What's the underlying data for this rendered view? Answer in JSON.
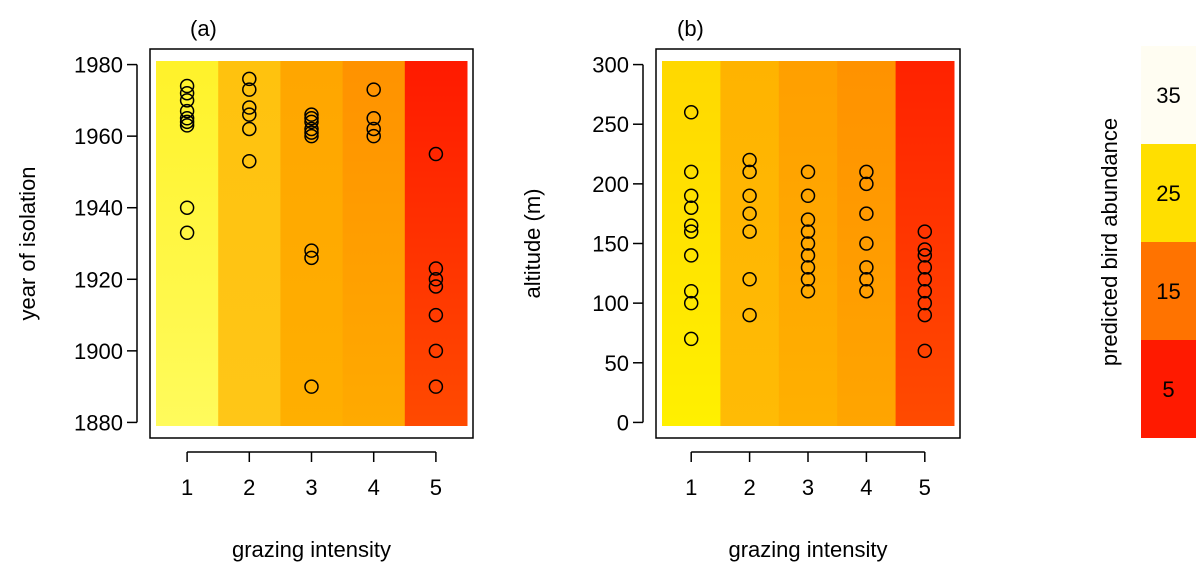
{
  "chart_data": [
    {
      "type": "scatter",
      "panel_label": "(a)",
      "xlabel": "grazing intensity",
      "ylabel": "year of isolation",
      "x_ticks": [
        1,
        2,
        3,
        4,
        5
      ],
      "y_ticks": [
        1880,
        1900,
        1920,
        1940,
        1960,
        1980
      ],
      "xlim": [
        0.5,
        5.5
      ],
      "ylim": [
        1879,
        1981
      ],
      "background": "heatmap of predicted bird abundance by grazing intensity",
      "column_colors": [
        [
          "#FFF22A",
          "#FFFB5C"
        ],
        [
          "#FFC20E",
          "#FFC617"
        ],
        [
          "#FFA600",
          "#FFAF00"
        ],
        [
          "#FF9200",
          "#FFAA00"
        ],
        [
          "#FF1A00",
          "#FF4A00"
        ]
      ],
      "points": [
        [
          1,
          1974
        ],
        [
          1,
          1972
        ],
        [
          1,
          1970
        ],
        [
          1,
          1967
        ],
        [
          1,
          1965
        ],
        [
          1,
          1964
        ],
        [
          1,
          1963
        ],
        [
          1,
          1940
        ],
        [
          1,
          1933
        ],
        [
          2,
          1976
        ],
        [
          2,
          1973
        ],
        [
          2,
          1968
        ],
        [
          2,
          1966
        ],
        [
          2,
          1962
        ],
        [
          2,
          1953
        ],
        [
          3,
          1966
        ],
        [
          3,
          1965
        ],
        [
          3,
          1964
        ],
        [
          3,
          1962
        ],
        [
          3,
          1961
        ],
        [
          3,
          1960
        ],
        [
          3,
          1928
        ],
        [
          3,
          1926
        ],
        [
          3,
          1890
        ],
        [
          4,
          1973
        ],
        [
          4,
          1965
        ],
        [
          4,
          1962
        ],
        [
          4,
          1960
        ],
        [
          5,
          1955
        ],
        [
          5,
          1923
        ],
        [
          5,
          1920
        ],
        [
          5,
          1918
        ],
        [
          5,
          1910
        ],
        [
          5,
          1900
        ],
        [
          5,
          1890
        ]
      ]
    },
    {
      "type": "scatter",
      "panel_label": "(b)",
      "xlabel": "grazing intensity",
      "ylabel": "altitude (m)",
      "x_ticks": [
        1,
        2,
        3,
        4,
        5
      ],
      "y_ticks": [
        0,
        50,
        100,
        150,
        200,
        250,
        300
      ],
      "xlim": [
        0.5,
        5.5
      ],
      "ylim": [
        -3,
        303
      ],
      "background": "heatmap of predicted bird abundance by grazing intensity",
      "column_colors": [
        [
          "#FFD800",
          "#FFF000"
        ],
        [
          "#FFB300",
          "#FFBB05"
        ],
        [
          "#FF9F00",
          "#FFB000"
        ],
        [
          "#FF9200",
          "#FFA500"
        ],
        [
          "#FF2200",
          "#FF4B00"
        ]
      ],
      "points": [
        [
          1,
          260
        ],
        [
          1,
          210
        ],
        [
          1,
          190
        ],
        [
          1,
          180
        ],
        [
          1,
          165
        ],
        [
          1,
          160
        ],
        [
          1,
          140
        ],
        [
          1,
          110
        ],
        [
          1,
          100
        ],
        [
          1,
          70
        ],
        [
          2,
          220
        ],
        [
          2,
          210
        ],
        [
          2,
          190
        ],
        [
          2,
          175
        ],
        [
          2,
          160
        ],
        [
          2,
          120
        ],
        [
          2,
          90
        ],
        [
          3,
          210
        ],
        [
          3,
          190
        ],
        [
          3,
          170
        ],
        [
          3,
          160
        ],
        [
          3,
          150
        ],
        [
          3,
          140
        ],
        [
          3,
          130
        ],
        [
          3,
          120
        ],
        [
          3,
          110
        ],
        [
          4,
          210
        ],
        [
          4,
          200
        ],
        [
          4,
          175
        ],
        [
          4,
          150
        ],
        [
          4,
          130
        ],
        [
          4,
          120
        ],
        [
          4,
          110
        ],
        [
          5,
          160
        ],
        [
          5,
          145
        ],
        [
          5,
          140
        ],
        [
          5,
          130
        ],
        [
          5,
          120
        ],
        [
          5,
          110
        ],
        [
          5,
          100
        ],
        [
          5,
          90
        ],
        [
          5,
          60
        ]
      ]
    }
  ],
  "legend": {
    "title": "predicted bird abundance",
    "labels": [
      "35",
      "25",
      "15",
      "5"
    ],
    "colors": [
      "#FFFDF2",
      "#FFDF00",
      "#FF7300",
      "#FF1A00"
    ]
  }
}
